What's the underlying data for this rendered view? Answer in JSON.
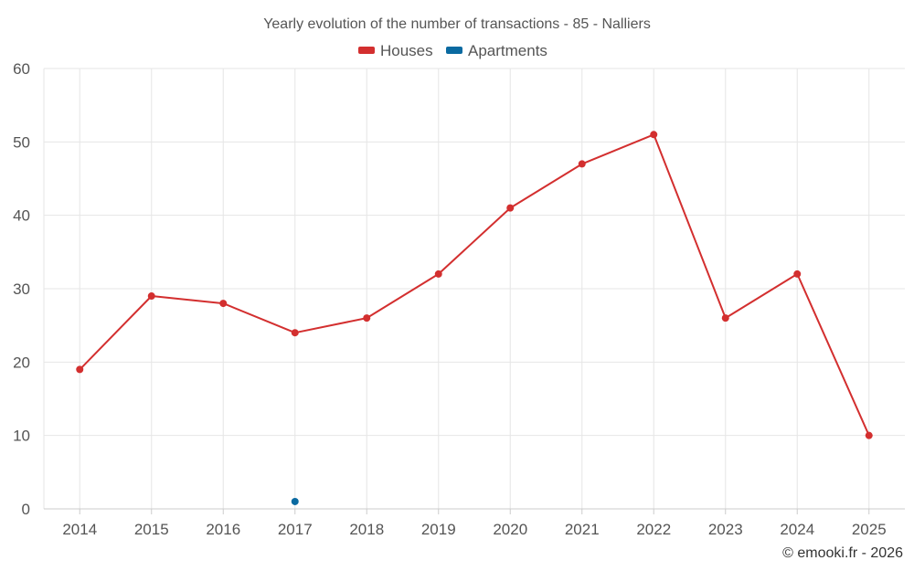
{
  "chart_data": {
    "type": "line",
    "title": "Yearly evolution of the number of transactions - 85 - Nalliers",
    "xlabel": "",
    "ylabel": "",
    "categories": [
      "2014",
      "2015",
      "2016",
      "2017",
      "2018",
      "2019",
      "2020",
      "2021",
      "2022",
      "2023",
      "2024",
      "2025"
    ],
    "ylim": [
      0,
      60
    ],
    "yticks": [
      0,
      10,
      20,
      30,
      40,
      50,
      60
    ],
    "grid": true,
    "legend_position": "top-center",
    "series": [
      {
        "name": "Houses",
        "color": "#d32f2f",
        "values": [
          19,
          29,
          28,
          24,
          26,
          32,
          41,
          47,
          51,
          26,
          32,
          10
        ]
      },
      {
        "name": "Apartments",
        "color": "#0a6aa1",
        "values": [
          null,
          null,
          null,
          1,
          null,
          null,
          null,
          null,
          null,
          null,
          null,
          null
        ]
      }
    ],
    "credit": "© emooki.fr - 2026"
  }
}
